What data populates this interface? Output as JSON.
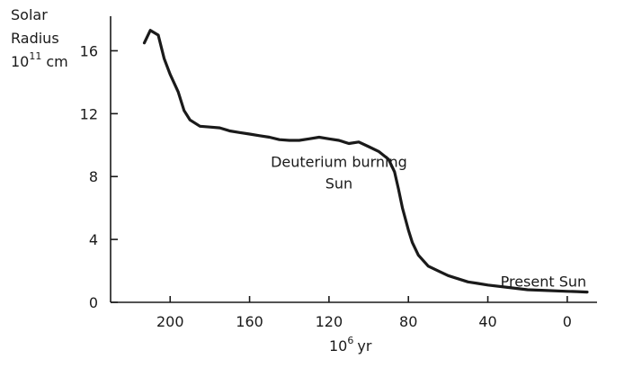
{
  "chart_data": {
    "type": "line",
    "ylabel_line1": "Solar",
    "ylabel_line2": "Radius",
    "ylabel_unit_base": "10",
    "ylabel_unit_exp": "11",
    "ylabel_unit_suffix": "cm",
    "xlabel_base": "10",
    "xlabel_exp": "6",
    "xlabel_suffix": "yr",
    "x_reversed": true,
    "xlim": [
      230,
      -15
    ],
    "ylim": [
      0,
      18.2
    ],
    "x_ticks": [
      200,
      160,
      120,
      80,
      40,
      0
    ],
    "y_ticks": [
      0,
      4,
      8,
      12,
      16
    ],
    "annotations": [
      {
        "lines": [
          "Deuterium burning",
          "Sun"
        ],
        "x": 115,
        "y": 8.6
      },
      {
        "lines": [
          "Present Sun"
        ],
        "x": 12,
        "y": 1.0
      }
    ],
    "series": [
      {
        "x": [
          213,
          210,
          206,
          203,
          200,
          196,
          193,
          190,
          185,
          180,
          175,
          170,
          165,
          160,
          155,
          150,
          145,
          140,
          135,
          130,
          125,
          120,
          115,
          110,
          105,
          100,
          95,
          90,
          87,
          85,
          83,
          80,
          78,
          75,
          70,
          65,
          60,
          55,
          50,
          45,
          40,
          30,
          20,
          10,
          0,
          -5,
          -10
        ],
        "y": [
          16.5,
          17.3,
          17.0,
          15.5,
          14.5,
          13.4,
          12.2,
          11.6,
          11.2,
          11.15,
          11.1,
          10.9,
          10.8,
          10.7,
          10.6,
          10.5,
          10.35,
          10.3,
          10.3,
          10.4,
          10.5,
          10.4,
          10.3,
          10.1,
          10.2,
          9.9,
          9.6,
          9.1,
          8.3,
          7.2,
          6.0,
          4.6,
          3.8,
          3.0,
          2.3,
          2.0,
          1.7,
          1.5,
          1.3,
          1.2,
          1.1,
          0.95,
          0.8,
          0.75,
          0.7,
          0.68,
          0.65
        ]
      }
    ]
  }
}
